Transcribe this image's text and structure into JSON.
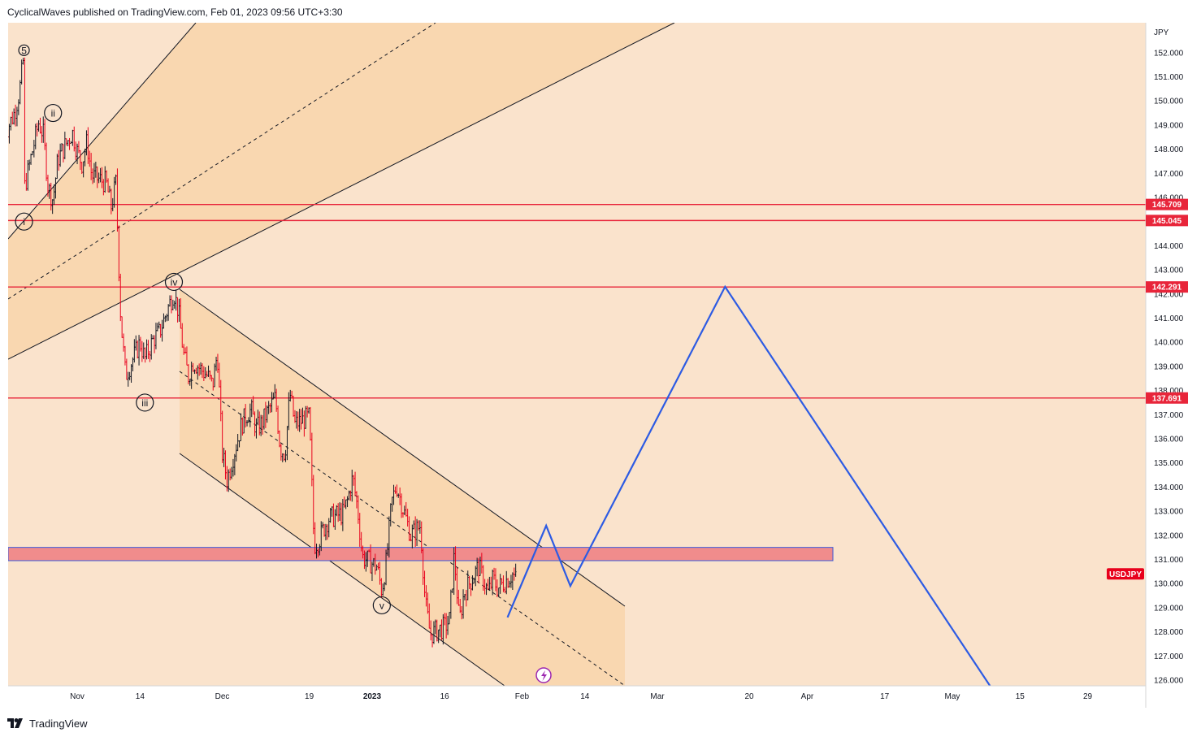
{
  "header": {
    "published_text": "CyclicalWaves published on TradingView.com, Feb 01, 2023 09:56 UTC+3:30"
  },
  "footer": {
    "brand": "TradingView"
  },
  "colors": {
    "background": "#fae3cc",
    "channel_fill": "#f9d7b0",
    "candle_up": "#131722",
    "candle_down": "#e8001c",
    "level_line": "#e8253a",
    "projection": "#2d5be3",
    "resistance_zone": "#f08c8c",
    "ticker_badge": "#e8001c"
  },
  "chart_data": {
    "type": "line",
    "symbol": "USDJPY",
    "currency": "JPY",
    "y_axis": {
      "ylim": [
        125.9,
        153.0
      ],
      "ticks": [
        "126.000",
        "127.000",
        "128.000",
        "129.000",
        "130.000",
        "131.000",
        "132.000",
        "133.000",
        "134.000",
        "135.000",
        "136.000",
        "137.000",
        "138.000",
        "139.000",
        "140.000",
        "141.000",
        "142.000",
        "143.000",
        "144.000",
        "145.000",
        "146.000",
        "147.000",
        "148.000",
        "149.000",
        "150.000",
        "151.000",
        "152.000"
      ]
    },
    "x_axis": {
      "tick_labels": [
        "Nov",
        "14",
        "Dec",
        "19",
        "2023",
        "16",
        "Feb",
        "14",
        "Mar",
        "20",
        "Apr",
        "17",
        "May",
        "15",
        "29"
      ],
      "tick_dates": [
        "2022-11-01",
        "2022-11-14",
        "2022-12-01",
        "2022-12-19",
        "2023-01-01",
        "2023-01-16",
        "2023-02-01",
        "2023-02-14",
        "2023-03-01",
        "2023-03-20",
        "2023-04-01",
        "2023-04-17",
        "2023-05-01",
        "2023-05-15",
        "2023-05-29"
      ]
    },
    "price_levels": [
      {
        "value": 145.709,
        "label": "145.709"
      },
      {
        "value": 145.045,
        "label": "145.045"
      },
      {
        "value": 142.291,
        "label": "142.291"
      },
      {
        "value": 137.691,
        "label": "137.691"
      }
    ],
    "resistance_zone": {
      "from": 130.95,
      "to": 131.5
    },
    "elliott_wave_labels": [
      {
        "label": "5",
        "date": "2022-10-21",
        "price": 152.1
      },
      {
        "label": "ii",
        "date": "2022-10-27",
        "price": 149.5
      },
      {
        "label": "i",
        "date": "2022-10-21",
        "price": 145.0
      },
      {
        "label": "iv",
        "date": "2022-11-21",
        "price": 142.5
      },
      {
        "label": "iii",
        "date": "2022-11-15",
        "price": 137.5
      },
      {
        "label": "v",
        "date": "2023-01-03",
        "price": 129.1
      }
    ],
    "ohlc_path": [
      [
        "2022-10-17",
        148.6
      ],
      [
        "2022-10-19",
        149.5
      ],
      [
        "2022-10-20",
        150.3
      ],
      [
        "2022-10-21",
        151.9
      ],
      [
        "2022-10-21",
        146.3
      ],
      [
        "2022-10-24",
        149.1
      ],
      [
        "2022-10-25",
        148.6
      ],
      [
        "2022-10-26",
        146.4
      ],
      [
        "2022-10-27",
        145.9
      ],
      [
        "2022-10-28",
        147.6
      ],
      [
        "2022-10-31",
        148.7
      ],
      [
        "2022-11-01",
        147.9
      ],
      [
        "2022-11-02",
        147.4
      ],
      [
        "2022-11-03",
        148.3
      ],
      [
        "2022-11-04",
        146.9
      ],
      [
        "2022-11-07",
        146.6
      ],
      [
        "2022-11-08",
        145.6
      ],
      [
        "2022-11-09",
        146.6
      ],
      [
        "2022-11-10",
        141.0
      ],
      [
        "2022-11-11",
        138.6
      ],
      [
        "2022-11-14",
        140.0
      ],
      [
        "2022-11-15",
        139.3
      ],
      [
        "2022-11-16",
        139.8
      ],
      [
        "2022-11-17",
        140.2
      ],
      [
        "2022-11-18",
        140.4
      ],
      [
        "2022-11-21",
        142.1
      ],
      [
        "2022-11-22",
        141.2
      ],
      [
        "2022-11-23",
        139.5
      ],
      [
        "2022-11-24",
        138.6
      ],
      [
        "2022-11-25",
        139.2
      ],
      [
        "2022-11-28",
        138.6
      ],
      [
        "2022-11-29",
        138.2
      ],
      [
        "2022-11-30",
        139.6
      ],
      [
        "2022-12-01",
        135.4
      ],
      [
        "2022-12-02",
        134.3
      ],
      [
        "2022-12-05",
        136.6
      ],
      [
        "2022-12-06",
        137.0
      ],
      [
        "2022-12-07",
        137.2
      ],
      [
        "2022-12-08",
        136.4
      ],
      [
        "2022-12-09",
        136.6
      ],
      [
        "2022-12-12",
        137.7
      ],
      [
        "2022-12-13",
        135.6
      ],
      [
        "2022-12-14",
        135.4
      ],
      [
        "2022-12-15",
        137.9
      ],
      [
        "2022-12-16",
        136.6
      ],
      [
        "2022-12-19",
        136.9
      ],
      [
        "2022-12-20",
        131.6
      ],
      [
        "2022-12-21",
        131.8
      ],
      [
        "2022-12-22",
        132.3
      ],
      [
        "2022-12-23",
        132.7
      ],
      [
        "2022-12-26",
        132.9
      ],
      [
        "2022-12-27",
        133.5
      ],
      [
        "2022-12-28",
        134.4
      ],
      [
        "2022-12-29",
        133.1
      ],
      [
        "2022-12-30",
        131.1
      ],
      [
        "2023-01-02",
        130.7
      ],
      [
        "2023-01-03",
        129.7
      ],
      [
        "2023-01-04",
        131.0
      ],
      [
        "2023-01-05",
        133.3
      ],
      [
        "2023-01-06",
        134.1
      ],
      [
        "2023-01-09",
        132.0
      ],
      [
        "2023-01-10",
        132.2
      ],
      [
        "2023-01-11",
        132.4
      ],
      [
        "2023-01-12",
        129.2
      ],
      [
        "2023-01-13",
        127.9
      ],
      [
        "2023-01-16",
        128.2
      ],
      [
        "2023-01-17",
        128.5
      ],
      [
        "2023-01-18",
        131.2
      ],
      [
        "2023-01-19",
        128.4
      ],
      [
        "2023-01-20",
        129.6
      ],
      [
        "2023-01-23",
        130.7
      ],
      [
        "2023-01-24",
        130.2
      ],
      [
        "2023-01-25",
        129.6
      ],
      [
        "2023-01-26",
        130.2
      ],
      [
        "2023-01-27",
        129.8
      ],
      [
        "2023-01-30",
        130.4
      ],
      [
        "2023-01-31",
        130.1
      ]
    ],
    "projection_path": [
      [
        "2023-01-29",
        128.6
      ],
      [
        "2023-02-06",
        132.4
      ],
      [
        "2023-02-11",
        129.9
      ],
      [
        "2023-03-15",
        142.3
      ],
      [
        "2023-05-10",
        125.4
      ]
    ],
    "ticker_badge": {
      "label": "USDJPY",
      "value": 130.2
    }
  }
}
